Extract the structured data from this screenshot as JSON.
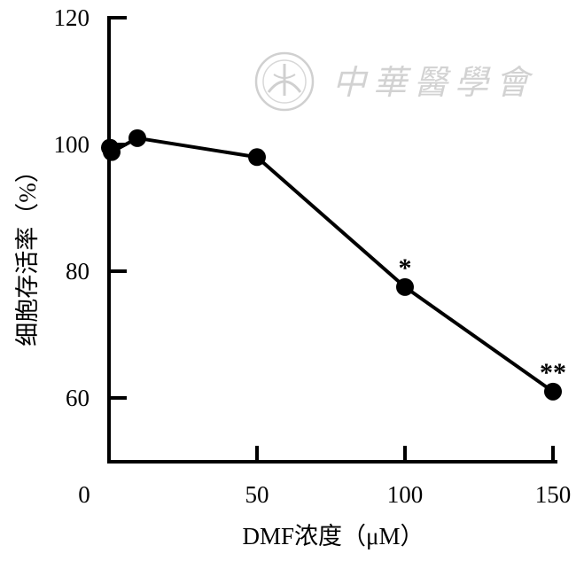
{
  "chart_data": {
    "type": "line",
    "title": "",
    "xlabel": "DMF浓度（μM）",
    "ylabel": "细胞存活率（%）",
    "xlim": [
      -5,
      155
    ],
    "ylim": [
      50,
      120
    ],
    "x_ticks": [
      "0",
      "50",
      "100",
      "150"
    ],
    "y_ticks": [
      "60",
      "80",
      "100",
      "120"
    ],
    "grid": false,
    "series": [
      {
        "x": [
          0,
          1,
          10,
          50,
          100,
          150
        ],
        "y": [
          99.5,
          98.8,
          101,
          98,
          77.5,
          61
        ],
        "annotations": [
          "",
          "",
          "",
          "",
          "*",
          "**"
        ]
      }
    ],
    "colors": {
      "line": "#000000",
      "marker": "#000000",
      "watermark": "#cfcfcf"
    },
    "watermark": {
      "text": "中華醫學會",
      "icon": "society-seal-icon"
    }
  }
}
